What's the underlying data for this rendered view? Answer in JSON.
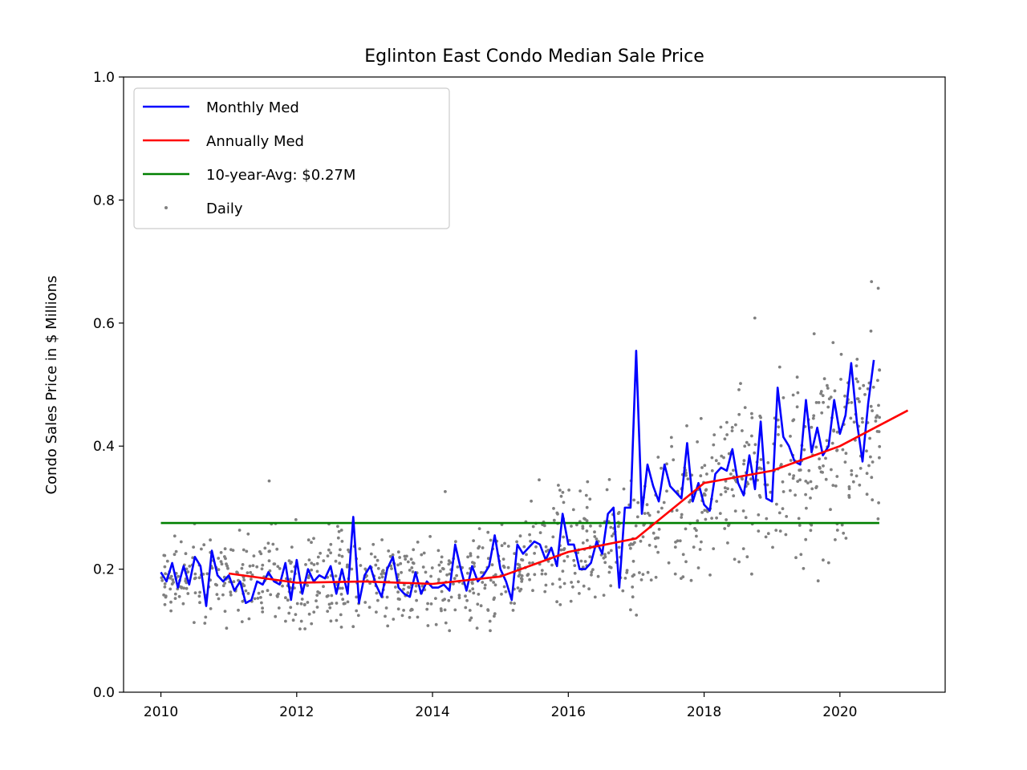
{
  "chart_data": {
    "type": "line",
    "title": "Eglinton East Condo Median Sale Price",
    "xlabel": "",
    "ylabel": "Condo Sales Price in $ Millions",
    "xlim": [
      2009.45,
      2021.55
    ],
    "ylim": [
      0.0,
      1.0
    ],
    "x_ticks": [
      2010,
      2012,
      2014,
      2016,
      2018,
      2020
    ],
    "x_tick_labels": [
      "2010",
      "2012",
      "2014",
      "2016",
      "2018",
      "2020"
    ],
    "y_ticks": [
      0.0,
      0.2,
      0.4,
      0.6,
      0.8,
      1.0
    ],
    "y_tick_labels": [
      "0.0",
      "0.2",
      "0.4",
      "0.6",
      "0.8",
      "1.0"
    ],
    "grid": false,
    "legend_position": "top-left",
    "series": [
      {
        "name": "Monthly Med",
        "color": "#0000ff",
        "style": "line",
        "start_year": 2010.0,
        "step": 0.08333,
        "values": [
          0.195,
          0.18,
          0.21,
          0.17,
          0.205,
          0.175,
          0.22,
          0.205,
          0.14,
          0.23,
          0.19,
          0.18,
          0.19,
          0.165,
          0.18,
          0.145,
          0.15,
          0.18,
          0.175,
          0.195,
          0.18,
          0.175,
          0.21,
          0.15,
          0.215,
          0.16,
          0.2,
          0.18,
          0.19,
          0.185,
          0.205,
          0.16,
          0.2,
          0.16,
          0.285,
          0.145,
          0.19,
          0.205,
          0.175,
          0.155,
          0.2,
          0.22,
          0.17,
          0.16,
          0.155,
          0.195,
          0.16,
          0.18,
          0.17,
          0.17,
          0.175,
          0.165,
          0.24,
          0.2,
          0.165,
          0.205,
          0.18,
          0.19,
          0.205,
          0.255,
          0.2,
          0.18,
          0.15,
          0.24,
          0.225,
          0.235,
          0.245,
          0.24,
          0.215,
          0.235,
          0.205,
          0.29,
          0.24,
          0.24,
          0.2,
          0.2,
          0.21,
          0.245,
          0.225,
          0.29,
          0.3,
          0.17,
          0.3,
          0.3,
          0.555,
          0.29,
          0.37,
          0.335,
          0.31,
          0.37,
          0.335,
          0.325,
          0.315,
          0.405,
          0.31,
          0.34,
          0.305,
          0.295,
          0.355,
          0.365,
          0.36,
          0.395,
          0.34,
          0.32,
          0.385,
          0.33,
          0.44,
          0.315,
          0.31,
          0.495,
          0.415,
          0.4,
          0.375,
          0.37,
          0.475,
          0.39,
          0.43,
          0.385,
          0.4,
          0.475,
          0.42,
          0.45,
          0.535,
          0.44,
          0.375,
          0.47,
          0.54
        ]
      },
      {
        "name": "Annually Med",
        "color": "#ff0000",
        "style": "line",
        "x": [
          2011.0,
          2012.0,
          2013.0,
          2014.0,
          2015.0,
          2016.0,
          2017.0,
          2018.0,
          2019.0,
          2020.0,
          2021.0
        ],
        "values": [
          0.193,
          0.178,
          0.18,
          0.176,
          0.188,
          0.228,
          0.25,
          0.34,
          0.36,
          0.4,
          0.458
        ]
      },
      {
        "name": "10-year-Avg: $0.27M",
        "color": "#008000",
        "style": "line",
        "x": [
          2010.0,
          2020.58
        ],
        "values": [
          0.275,
          0.275
        ]
      },
      {
        "name": "Daily",
        "color": "#808080",
        "style": "scatter",
        "x_range": [
          2010.0,
          2020.6
        ],
        "count": 1100,
        "note": "individual daily sale prices scattered around the monthly median"
      }
    ]
  }
}
